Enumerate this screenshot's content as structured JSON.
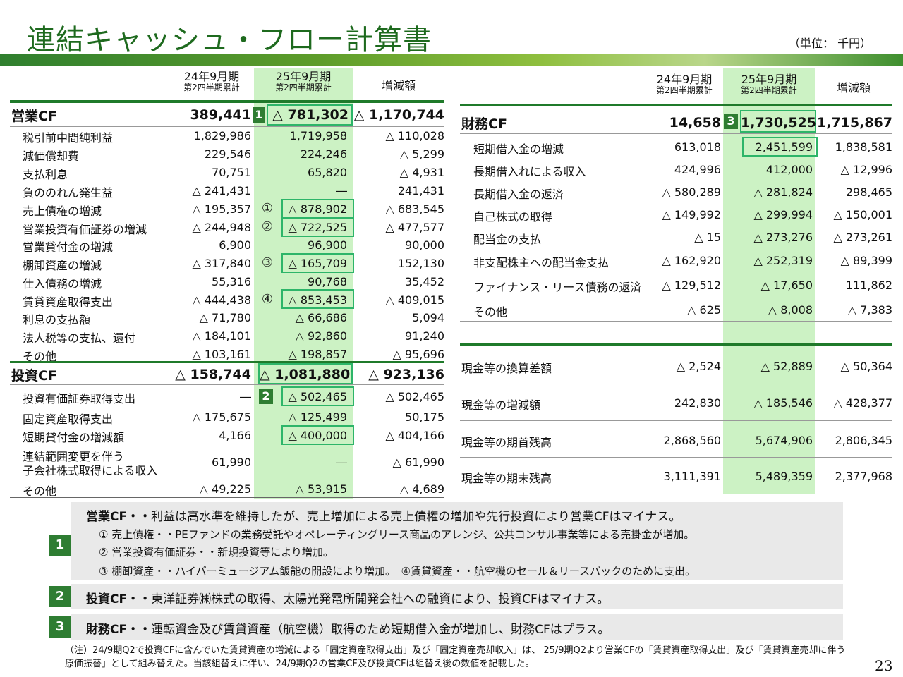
{
  "title": "連結キャッシュ・フロー計算書",
  "unit": "（単位： 千円）",
  "columns": {
    "prev_period": "24年9月期",
    "prev_sub": "第2四半期累計",
    "cur_period": "25年9月期",
    "cur_sub": "第2四半期累計",
    "diff": "増減額"
  },
  "operating": {
    "badge": "1",
    "total": {
      "label": "営業CF",
      "prev": "389,441",
      "cur": "△ 781,302",
      "diff": "△ 1,170,744"
    },
    "rows": [
      {
        "label": "税引前中間純利益",
        "prev": "1,829,986",
        "cur": "1,719,958",
        "diff": "△ 110,028"
      },
      {
        "label": "減価償却費",
        "prev": "229,546",
        "cur": "224,246",
        "diff": "△ 5,299"
      },
      {
        "label": "支払利息",
        "prev": "70,751",
        "cur": "65,820",
        "diff": "△ 4,931"
      },
      {
        "label": "負ののれん発生益",
        "prev": "△ 241,431",
        "cur": "―",
        "diff": "241,431"
      },
      {
        "label": "売上債権の増減",
        "prev": "△ 195,357",
        "cur": "△ 878,902",
        "diff": "△ 683,545",
        "mark": "①"
      },
      {
        "label": "営業投資有価証券の増減",
        "prev": "△ 244,948",
        "cur": "△ 722,525",
        "diff": "△ 477,577",
        "mark": "②"
      },
      {
        "label": "営業貸付金の増減",
        "prev": "6,900",
        "cur": "96,900",
        "diff": "90,000"
      },
      {
        "label": "棚卸資産の増減",
        "prev": "△ 317,840",
        "cur": "△ 165,709",
        "diff": "152,130",
        "mark": "③"
      },
      {
        "label": "仕入債務の増減",
        "prev": "55,316",
        "cur": "90,768",
        "diff": "35,452"
      },
      {
        "label": "賃貸資産取得支出",
        "prev": "△ 444,438",
        "cur": "△ 853,453",
        "diff": "△ 409,015",
        "mark": "④"
      },
      {
        "label": "利息の支払額",
        "prev": "△ 71,780",
        "cur": "△ 66,686",
        "diff": "5,094"
      },
      {
        "label": "法人税等の支払、還付",
        "prev": "△ 184,101",
        "cur": "△ 92,860",
        "diff": "91,240"
      },
      {
        "label": "その他",
        "prev": "△ 103,161",
        "cur": "△ 198,857",
        "diff": "△ 95,696"
      }
    ]
  },
  "investing": {
    "badge": "2",
    "total": {
      "label": "投資CF",
      "prev": "△ 158,744",
      "cur": "△ 1,081,880",
      "diff": "△ 923,136"
    },
    "rows": [
      {
        "label": "投資有価証券取得支出",
        "prev": "―",
        "cur": "△ 502,465",
        "diff": "△ 502,465"
      },
      {
        "label": "固定資産取得支出",
        "prev": "△ 175,675",
        "cur": "△ 125,499",
        "diff": "50,175"
      },
      {
        "label": "短期貸付金の増減額",
        "prev": "4,166",
        "cur": "△ 400,000",
        "diff": "△ 404,166"
      },
      {
        "label": "連結範囲変更を伴う",
        "label2": "子会社株式取得による収入",
        "prev": "61,990",
        "cur": "―",
        "diff": "△ 61,990"
      },
      {
        "label": "その他",
        "prev": "△ 49,225",
        "cur": "△ 53,915",
        "diff": "△ 4,689"
      }
    ]
  },
  "financing": {
    "badge": "3",
    "total": {
      "label": "財務CF",
      "prev": "14,658",
      "cur": "1,730,525",
      "diff": "1,715,867"
    },
    "rows": [
      {
        "label": "短期借入金の増減",
        "prev": "613,018",
        "cur": "2,451,599",
        "diff": "1,838,581"
      },
      {
        "label": "長期借入れによる収入",
        "prev": "424,996",
        "cur": "412,000",
        "diff": "△ 12,996"
      },
      {
        "label": "長期借入金の返済",
        "prev": "△ 580,289",
        "cur": "△ 281,824",
        "diff": "298,465"
      },
      {
        "label": "自己株式の取得",
        "prev": "△ 149,992",
        "cur": "△ 299,994",
        "diff": "△ 150,001"
      },
      {
        "label": "配当金の支払",
        "prev": "△ 15",
        "cur": "△ 273,276",
        "diff": "△ 273,261"
      },
      {
        "label": "非支配株主への配当金支払",
        "prev": "△ 162,920",
        "cur": "△ 252,319",
        "diff": "△ 89,399"
      },
      {
        "label": "ファイナンス・リース債務の返済",
        "prev": "△ 129,512",
        "cur": "△ 17,650",
        "diff": "111,862"
      },
      {
        "label": "その他",
        "prev": "△ 625",
        "cur": "△ 8,008",
        "diff": "△ 7,383"
      }
    ]
  },
  "cash": [
    {
      "label": "現金等の換算差額",
      "prev": "△ 2,524",
      "cur": "△ 52,889",
      "diff": "△ 50,364"
    },
    {
      "label": "現金等の増減額",
      "prev": "242,830",
      "cur": "△ 185,546",
      "diff": "△ 428,377"
    },
    {
      "label": "現金等の期首残高",
      "prev": "2,868,560",
      "cur": "5,674,906",
      "diff": "2,806,345"
    },
    {
      "label": "現金等の期末残高",
      "prev": "3,111,391",
      "cur": "5,489,359",
      "diff": "2,377,968"
    }
  ],
  "notes": {
    "n1": {
      "num": "1",
      "head": "営業CF・・",
      "text": "利益は高水準を維持したが、売上増加による売上債権の増加や先行投資により営業CFはマイナス。",
      "sub1": "① 売上債権・・PEファンドの業務受託やオペレーティングリース商品のアレンジ、公共コンサル事業等による売掛金が増加。",
      "sub2": "② 営業投資有価証券・・新規投資等により増加。",
      "sub3": "③ 棚卸資産・・ハイパーミュージアム飯能の開設により増加。　④賃貸資産・・航空機のセール＆リースバックのために支出。"
    },
    "n2": {
      "num": "2",
      "head": "投資CF・・",
      "text": "東洋証券㈱株式の取得、太陽光発電所開発会社への融資により、投資CFはマイナス。"
    },
    "n3": {
      "num": "3",
      "head": "財務CF・・",
      "text": "運転資金及び賃貸資産（航空機）取得のため短期借入金が増加し、財務CFはプラス。"
    }
  },
  "footnote": "（注）24/9期Q2で投資CFに含んでいた賃貸資産の増減による「固定資産取得支出」及び「固定資産売却収入」は、 25/9期Q2より営業CFの「賃貸資産取得支出」及び「賃貸資産売却に伴う原価振替」として組み替えた。当該組替えに伴い、24/9期Q2の営業CF及び投資CFは組替え後の数値を記載した。",
  "page_number": "23"
}
